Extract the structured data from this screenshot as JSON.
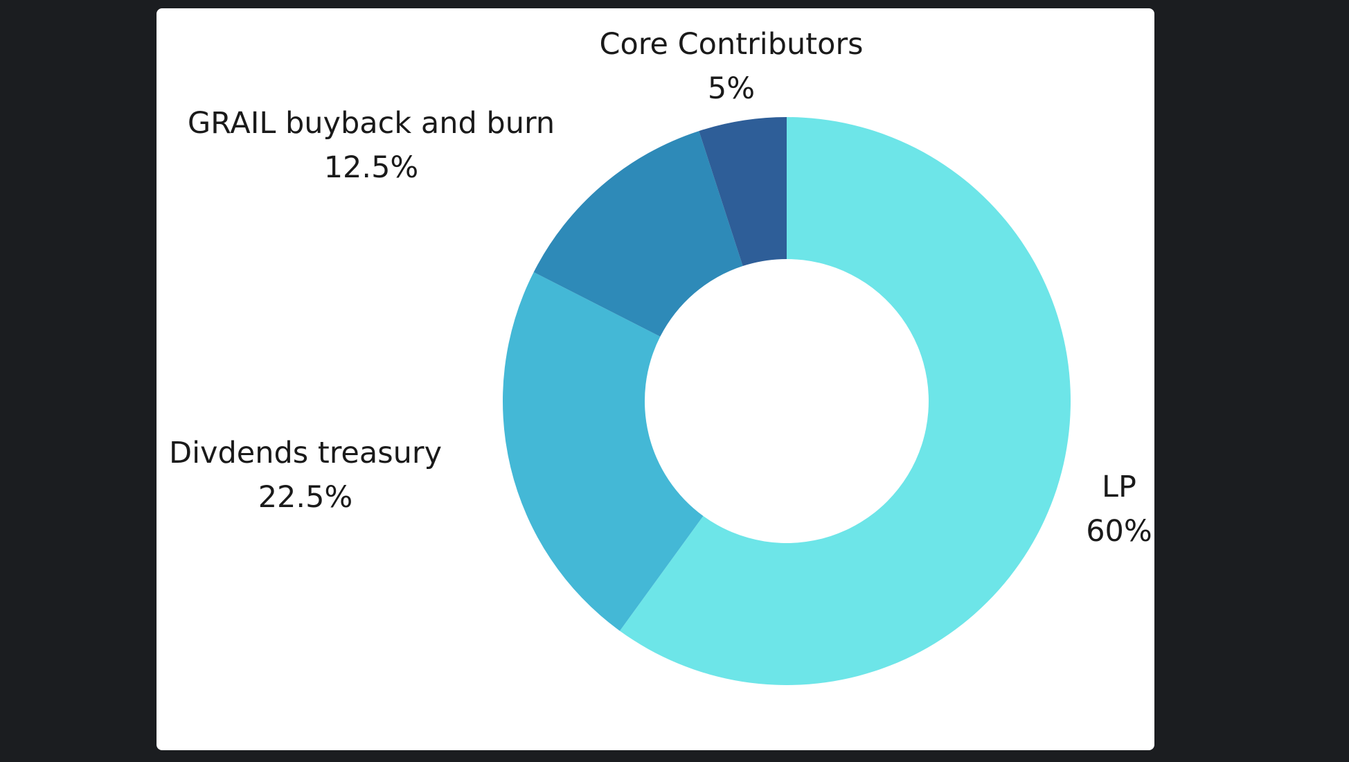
{
  "page": {
    "background": "#1b1d20",
    "card_background": "#ffffff"
  },
  "chart_data": {
    "type": "pie",
    "donut": true,
    "title": "",
    "start": "top",
    "direction": "clockwise",
    "slices": [
      {
        "label": "LP",
        "value": 60,
        "display": "60%",
        "color": "#6de5e8"
      },
      {
        "label": "Divdends treasury",
        "value": 22.5,
        "display": "22.5%",
        "color": "#44b8d6"
      },
      {
        "label": "GRAIL buyback and burn",
        "value": 12.5,
        "display": "12.5%",
        "color": "#2e8ab8"
      },
      {
        "label": "Core Contributors",
        "value": 5,
        "display": "5%",
        "color": "#2e5e98"
      }
    ]
  }
}
